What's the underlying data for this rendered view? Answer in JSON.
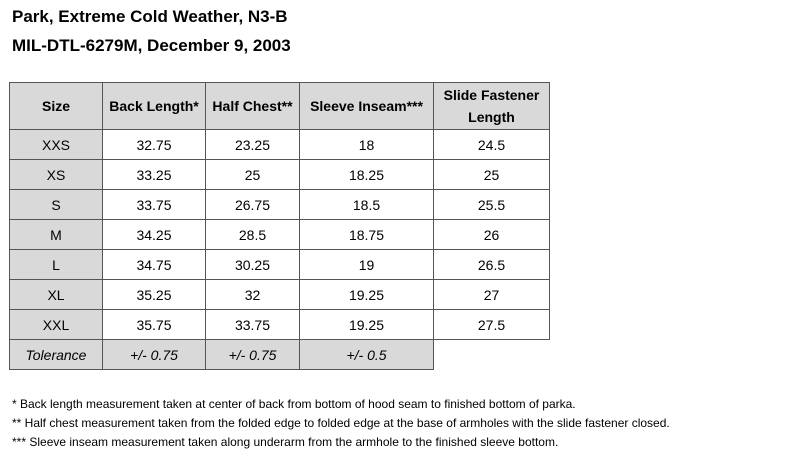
{
  "title_line1": "Park, Extreme Cold Weather, N3-B",
  "title_line2": "MIL-DTL-6279M, December 9, 2003",
  "table": {
    "headers": [
      "Size",
      "Back Length*",
      "Half Chest**",
      "Sleeve Inseam***",
      "Slide Fastener Length"
    ],
    "rows": [
      [
        "XXS",
        "32.75",
        "23.25",
        "18",
        "24.5"
      ],
      [
        "XS",
        "33.25",
        "25",
        "18.25",
        "25"
      ],
      [
        "S",
        "33.75",
        "26.75",
        "18.5",
        "25.5"
      ],
      [
        "M",
        "34.25",
        "28.5",
        "18.75",
        "26"
      ],
      [
        "L",
        "34.75",
        "30.25",
        "19",
        "26.5"
      ],
      [
        "XL",
        "35.25",
        "32",
        "19.25",
        "27"
      ],
      [
        "XXL",
        "35.75",
        "33.75",
        "19.25",
        "27.5"
      ]
    ],
    "tolerance": [
      "Tolerance",
      "+/- 0.75",
      "+/- 0.75",
      "+/- 0.5"
    ]
  },
  "footnotes": [
    "* Back length measurement taken at center of back from bottom of hood seam to finished bottom of parka.",
    "** Half chest measurement taken from the folded edge to folded edge at the base of armholes with the slide fastener closed.",
    "*** Sleeve inseam measurement taken along underarm from the armhole to the finished sleeve bottom."
  ]
}
